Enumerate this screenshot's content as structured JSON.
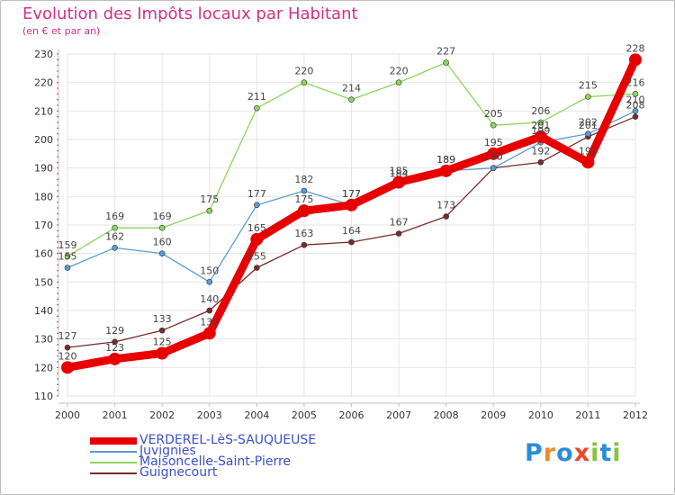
{
  "header": {
    "title": "Evolution des Impôts locaux par Habitant",
    "subtitle": "(en € et par an)"
  },
  "colors": {
    "title": "#d0308a",
    "axis": "#c0c0c0",
    "grid": "#e6e6e6",
    "tick_text": "#333333",
    "legend_text": "#3a50c8"
  },
  "logo": {
    "text": "Proxiti",
    "letters": [
      {
        "char": "P",
        "color": "#2a8ed6"
      },
      {
        "char": "r",
        "color": "#ef8a2a"
      },
      {
        "char": "o",
        "color": "#2a8ed6"
      },
      {
        "char": "x",
        "color": "#e84a2a"
      },
      {
        "char": "i",
        "color": "#8ac23a"
      },
      {
        "char": "t",
        "color": "#2a8ed6"
      },
      {
        "char": "i",
        "color": "#8ac23a"
      }
    ]
  },
  "chart_data": {
    "type": "line",
    "title": "Evolution des Impôts locaux par Habitant",
    "subtitle": "(en € et par an)",
    "x": [
      "2000",
      "2001",
      "2002",
      "2003",
      "2004",
      "2005",
      "2006",
      "2007",
      "2008",
      "2009",
      "2010",
      "2011",
      "2012"
    ],
    "ylim": [
      110,
      230
    ],
    "yticks": [
      110,
      120,
      130,
      140,
      150,
      160,
      170,
      180,
      190,
      200,
      210,
      220,
      230
    ],
    "grid": true,
    "legend_position": "bottom",
    "series": [
      {
        "name": "VERDEREL-LèS-SAUQUEUSE",
        "color": "#e80000",
        "width": 9,
        "values": [
          120,
          123,
          125,
          132,
          165,
          175,
          177,
          185,
          189,
          195,
          201,
          192,
          228
        ]
      },
      {
        "name": "Juvignies",
        "color": "#5b9bd5",
        "width": 1.3,
        "values": [
          155,
          162,
          160,
          150,
          177,
          182,
          177,
          184,
          189,
          190,
          199,
          202,
          210
        ]
      },
      {
        "name": "Maisoncelle-Saint-Pierre",
        "color": "#8cd65a",
        "width": 1.3,
        "values": [
          159,
          169,
          169,
          175,
          211,
          220,
          214,
          220,
          227,
          205,
          206,
          215,
          216
        ]
      },
      {
        "name": "Guignecourt",
        "color": "#7b2a2a",
        "width": 1.3,
        "values": [
          127,
          129,
          133,
          140,
          155,
          163,
          164,
          167,
          173,
          190,
          192,
          201,
          208
        ]
      }
    ]
  }
}
